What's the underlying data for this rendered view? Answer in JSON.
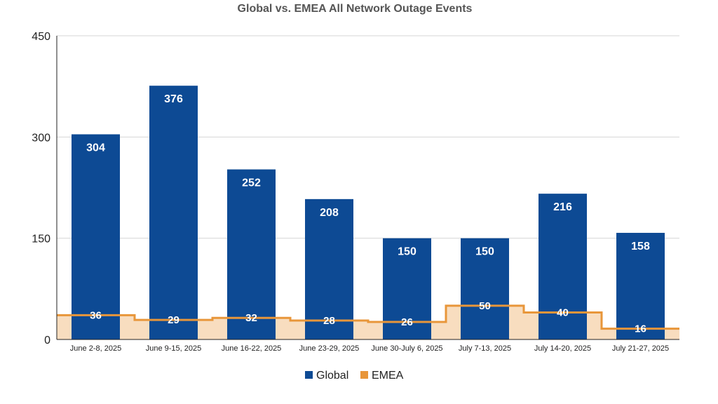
{
  "chart_data": {
    "type": "bar",
    "title": "Global vs. EMEA All Network Outage Events",
    "categories": [
      "June 2-8, 2025",
      "June 9-15, 2025",
      "June 16-22, 2025",
      "June 23-29, 2025",
      "June 30-July 6, 2025",
      "July 7-13, 2025",
      "July 14-20, 2025",
      "July 21-27, 2025"
    ],
    "series": [
      {
        "name": "Global",
        "type": "bar",
        "color": "#0d4a94",
        "values": [
          304,
          376,
          252,
          208,
          150,
          150,
          216,
          158
        ]
      },
      {
        "name": "EMEA",
        "type": "step-area",
        "color": "#e8963a",
        "fill": "#f8ddbf",
        "values": [
          36,
          29,
          32,
          28,
          26,
          50,
          40,
          16
        ]
      }
    ],
    "ylim": [
      0,
      450
    ],
    "yticks": [
      0,
      150,
      300,
      450
    ],
    "grid": true,
    "legend": "bottom",
    "data_labels": true
  }
}
